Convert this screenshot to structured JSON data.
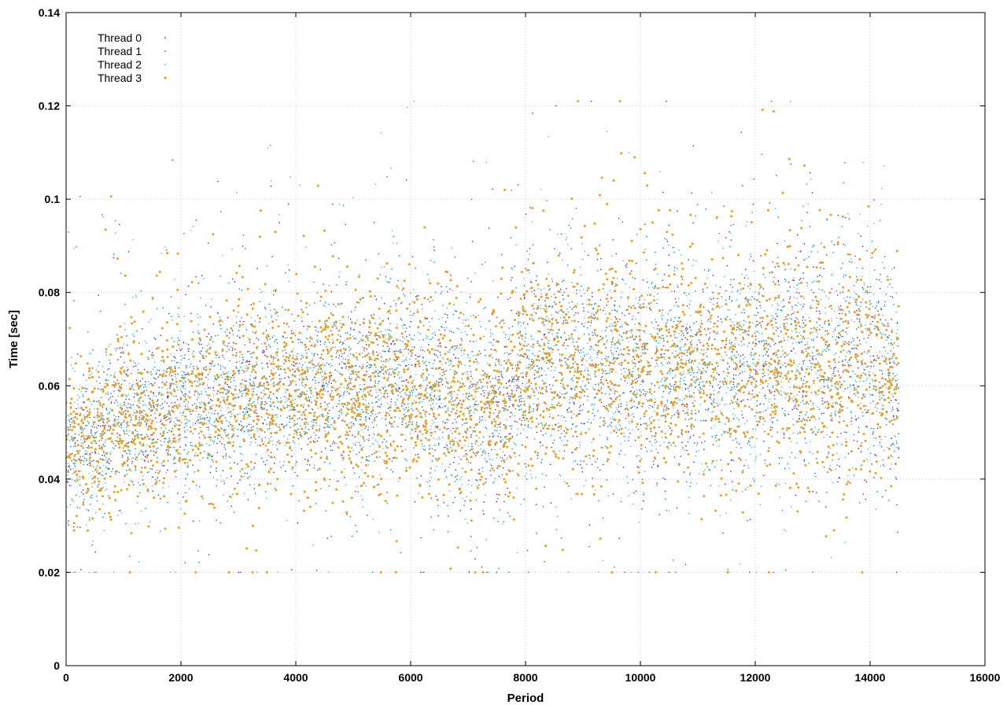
{
  "chart_data": {
    "type": "scatter",
    "title": "",
    "xlabel": "Period",
    "ylabel": "Time [sec]",
    "xlim": [
      0,
      16000
    ],
    "ylim": [
      0,
      0.14
    ],
    "x_ticks": [
      0,
      2000,
      4000,
      6000,
      8000,
      10000,
      12000,
      14000,
      16000
    ],
    "x_tick_labels": [
      "0",
      "2000",
      "4000",
      "6000",
      "8000",
      "10000",
      "12000",
      "14000",
      "16000"
    ],
    "y_ticks": [
      0,
      0.02,
      0.04,
      0.06,
      0.08,
      0.1,
      0.12,
      0.14
    ],
    "y_tick_labels": [
      "0",
      "0.02",
      "0.04",
      "0.06",
      "0.08",
      "0.1",
      "0.12",
      "0.14"
    ],
    "grid": true,
    "legend_position": "top-left",
    "x_data_range": [
      0,
      14500
    ],
    "series": [
      {
        "name": "Thread 0",
        "color": "#6a1f9a",
        "marker": "dot-small"
      },
      {
        "name": "Thread 1",
        "color": "#00968c",
        "marker": "dot-small"
      },
      {
        "name": "Thread 2",
        "color": "#4fb4e0",
        "marker": "dot-small"
      },
      {
        "name": "Thread 3",
        "color": "#e8a020",
        "marker": "dot-large"
      }
    ],
    "trend": [
      {
        "x": 0,
        "mean": 0.047,
        "spread": 0.008
      },
      {
        "x": 1000,
        "mean": 0.052,
        "spread": 0.009
      },
      {
        "x": 2000,
        "mean": 0.056,
        "spread": 0.009
      },
      {
        "x": 3000,
        "mean": 0.058,
        "spread": 0.01
      },
      {
        "x": 4000,
        "mean": 0.059,
        "spread": 0.01
      },
      {
        "x": 5000,
        "mean": 0.06,
        "spread": 0.01
      },
      {
        "x": 6000,
        "mean": 0.061,
        "spread": 0.011
      },
      {
        "x": 7000,
        "mean": 0.057,
        "spread": 0.011
      },
      {
        "x": 7600,
        "mean": 0.055,
        "spread": 0.011
      },
      {
        "x": 8000,
        "mean": 0.064,
        "spread": 0.012
      },
      {
        "x": 9000,
        "mean": 0.063,
        "spread": 0.012
      },
      {
        "x": 10000,
        "mean": 0.064,
        "spread": 0.012
      },
      {
        "x": 11000,
        "mean": 0.063,
        "spread": 0.012
      },
      {
        "x": 12000,
        "mean": 0.064,
        "spread": 0.012
      },
      {
        "x": 13000,
        "mean": 0.067,
        "spread": 0.013
      },
      {
        "x": 14000,
        "mean": 0.064,
        "spread": 0.012
      },
      {
        "x": 14500,
        "mean": 0.06,
        "spread": 0.011
      }
    ]
  }
}
